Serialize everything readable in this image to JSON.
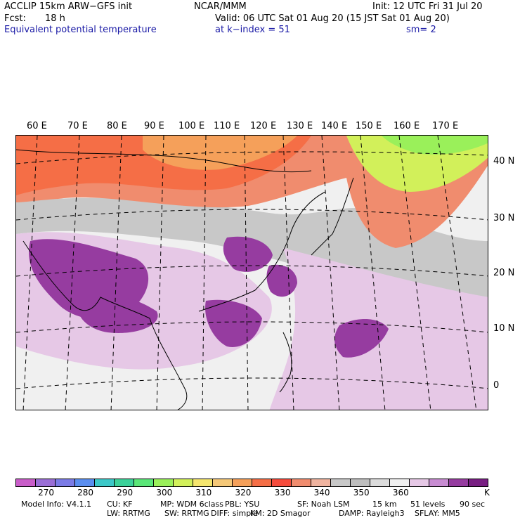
{
  "header": {
    "model": "ACCLIP 15km ARW−GFS init",
    "org": "NCAR/MMM",
    "init": "Init: 12 UTC Fri 31 Jul 20",
    "fcst_label": "Fcst:",
    "fcst_value": "18 h",
    "valid": "Valid: 06 UTC Sat 01 Aug 20 (15 JST Sat 01 Aug 20)",
    "field": "Equivalent potential temperature",
    "level": "at k−index =  51",
    "smooth": "sm= 2"
  },
  "map": {
    "lon_labels": [
      "60 E",
      "70 E",
      "80 E",
      "90 E",
      "100 E",
      "110 E",
      "120 E",
      "130 E",
      "140 E",
      "150 E",
      "160 E",
      "170 E"
    ],
    "lat_labels": [
      "40 N",
      "30 N",
      "20 N",
      "10 N",
      "0"
    ]
  },
  "colorbar": {
    "colors": [
      "#c95dc9",
      "#9a6ed6",
      "#7b7be6",
      "#5a8ef0",
      "#3cc8c8",
      "#3cd29a",
      "#5ae678",
      "#9af05a",
      "#d2f05a",
      "#f5e66e",
      "#f5c878",
      "#f5a05a",
      "#f56e46",
      "#f54b3c",
      "#f08c6e",
      "#f0b4a0",
      "#c8c8c8",
      "#bebebe",
      "#dcdcdc",
      "#f0f0f0",
      "#e6c8e6",
      "#c88cd2",
      "#963ca0",
      "#781e82"
    ],
    "labels": [
      "270",
      "280",
      "290",
      "300",
      "310",
      "320",
      "330",
      "340",
      "350",
      "360"
    ],
    "unit": "K"
  },
  "model_info": {
    "line1": [
      "Model Info: V4.1.1",
      "CU: KF",
      "MP: WDM 6class",
      "PBL: YSU",
      "SF: Noah LSM",
      "15 km",
      "51 levels",
      "90 sec"
    ],
    "line2": [
      "LW: RRTMG",
      "SW: RRTMG",
      "DIFF: simple",
      "KM: 2D Smagor",
      "DAMP: Rayleigh3",
      "SFLAY: MM5"
    ]
  }
}
